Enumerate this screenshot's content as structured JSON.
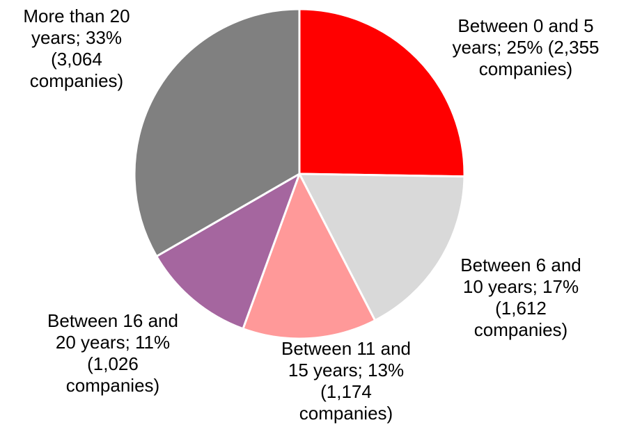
{
  "chart_data": {
    "type": "pie",
    "categories": [
      "Between 0 and 5 years; 25% (2,355 companies)",
      "Between 6 and 10 years; 17% (1,612 companies)",
      "Between 11 and 15 years; 13% (1,174 companies)",
      "Between 16 and 20 years; 11% (1,026 companies)",
      "More than 20 years; 33% (3,064 companies)"
    ],
    "values": [
      25,
      17,
      13,
      11,
      33
    ],
    "colors": [
      "#ff0000",
      "#d9d9d9",
      "#ff9999",
      "#a5669f",
      "#808080"
    ]
  }
}
